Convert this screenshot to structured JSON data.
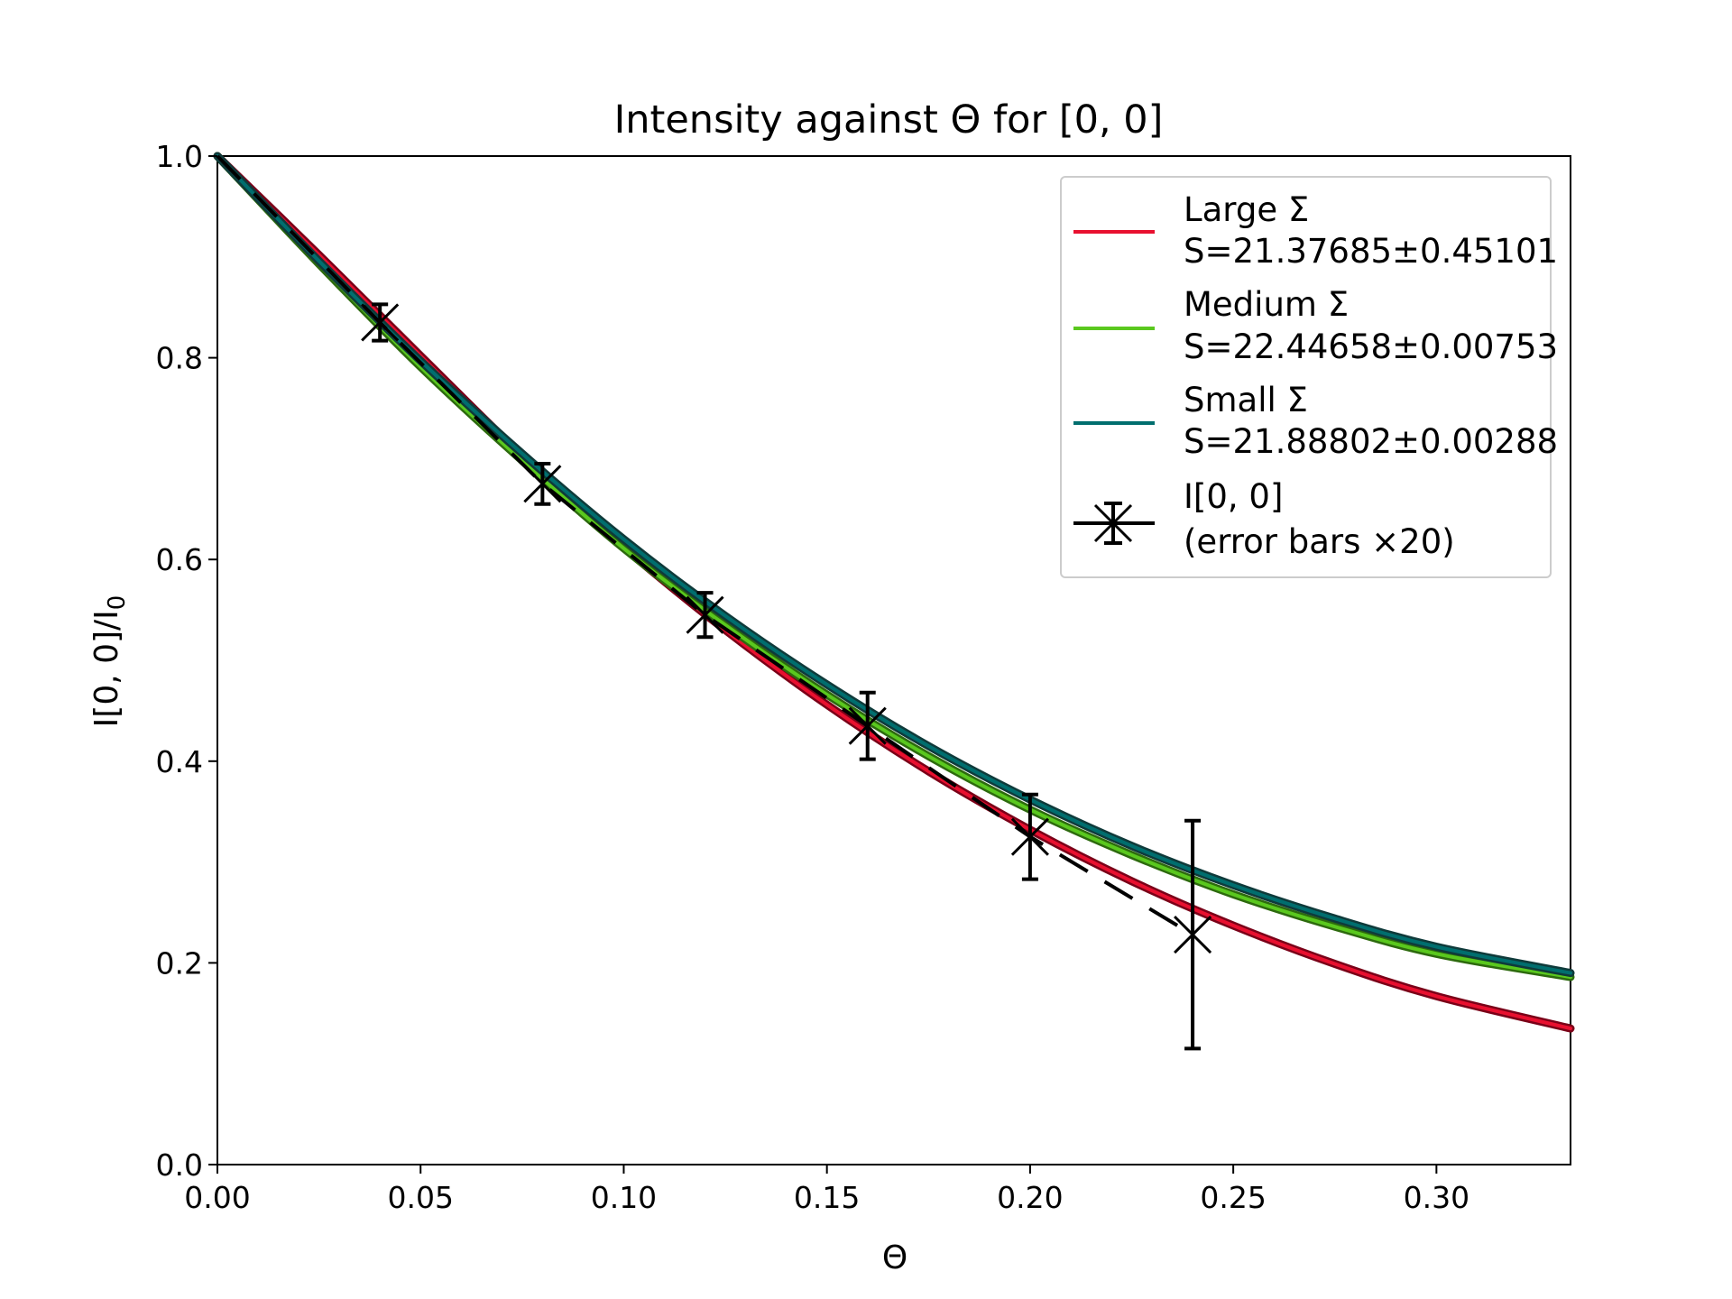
{
  "chart_data": {
    "type": "line",
    "title": "Intensity against Θ for [0, 0]",
    "xlabel": "Θ",
    "ylabel": "I[0, 0]/I",
    "ylabel_sub": "0",
    "xlim": [
      0,
      0.333
    ],
    "ylim": [
      0,
      1.0
    ],
    "xticks": [
      0.0,
      0.05,
      0.1,
      0.15,
      0.2,
      0.25,
      0.3
    ],
    "xtick_labels": [
      "0.00",
      "0.05",
      "0.10",
      "0.15",
      "0.20",
      "0.25",
      "0.30"
    ],
    "yticks": [
      0.0,
      0.2,
      0.4,
      0.6,
      0.8,
      1.0
    ],
    "ytick_labels": [
      "0.0",
      "0.2",
      "0.4",
      "0.6",
      "0.8",
      "1.0"
    ],
    "grid": false,
    "legend_position": "top-right",
    "series": [
      {
        "name": "Large Σ",
        "label_line2": "S=21.37685±0.45101",
        "color": "#e8102f",
        "edge_color": "#7a0018",
        "x": [
          0,
          0.025,
          0.05,
          0.075,
          0.1,
          0.125,
          0.15,
          0.175,
          0.2,
          0.225,
          0.25,
          0.275,
          0.3,
          0.333
        ],
        "values": [
          1.0,
          0.902,
          0.802,
          0.703,
          0.612,
          0.53,
          0.456,
          0.39,
          0.332,
          0.281,
          0.237,
          0.199,
          0.167,
          0.135
        ]
      },
      {
        "name": "Medium Σ",
        "label_line2": "S=22.44658±0.00753",
        "color": "#5ac81e",
        "edge_color": "#2d6a0e",
        "x": [
          0,
          0.025,
          0.05,
          0.075,
          0.1,
          0.125,
          0.15,
          0.175,
          0.2,
          0.225,
          0.25,
          0.275,
          0.3,
          0.333
        ],
        "values": [
          1.0,
          0.893,
          0.791,
          0.698,
          0.611,
          0.535,
          0.466,
          0.405,
          0.352,
          0.307,
          0.268,
          0.236,
          0.209,
          0.186
        ]
      },
      {
        "name": "Small Σ",
        "label_line2": "S=21.88802±0.00288",
        "color": "#006e6e",
        "edge_color": "#0f3a3a",
        "x": [
          0,
          0.025,
          0.05,
          0.075,
          0.1,
          0.125,
          0.15,
          0.175,
          0.2,
          0.225,
          0.25,
          0.275,
          0.3,
          0.333
        ],
        "values": [
          1.0,
          0.896,
          0.797,
          0.705,
          0.62,
          0.544,
          0.476,
          0.415,
          0.362,
          0.316,
          0.277,
          0.244,
          0.216,
          0.19
        ]
      }
    ],
    "measured": {
      "name": "I[0, 0]",
      "label_line2": "(error bars ×20)",
      "x": [
        0.0,
        0.04,
        0.08,
        0.12,
        0.16,
        0.2,
        0.24
      ],
      "values": [
        1.0,
        0.835,
        0.675,
        0.545,
        0.435,
        0.325,
        0.228
      ],
      "error": [
        0,
        0.018,
        0.02,
        0.022,
        0.033,
        0.042,
        0.113
      ],
      "color": "#000000"
    }
  }
}
